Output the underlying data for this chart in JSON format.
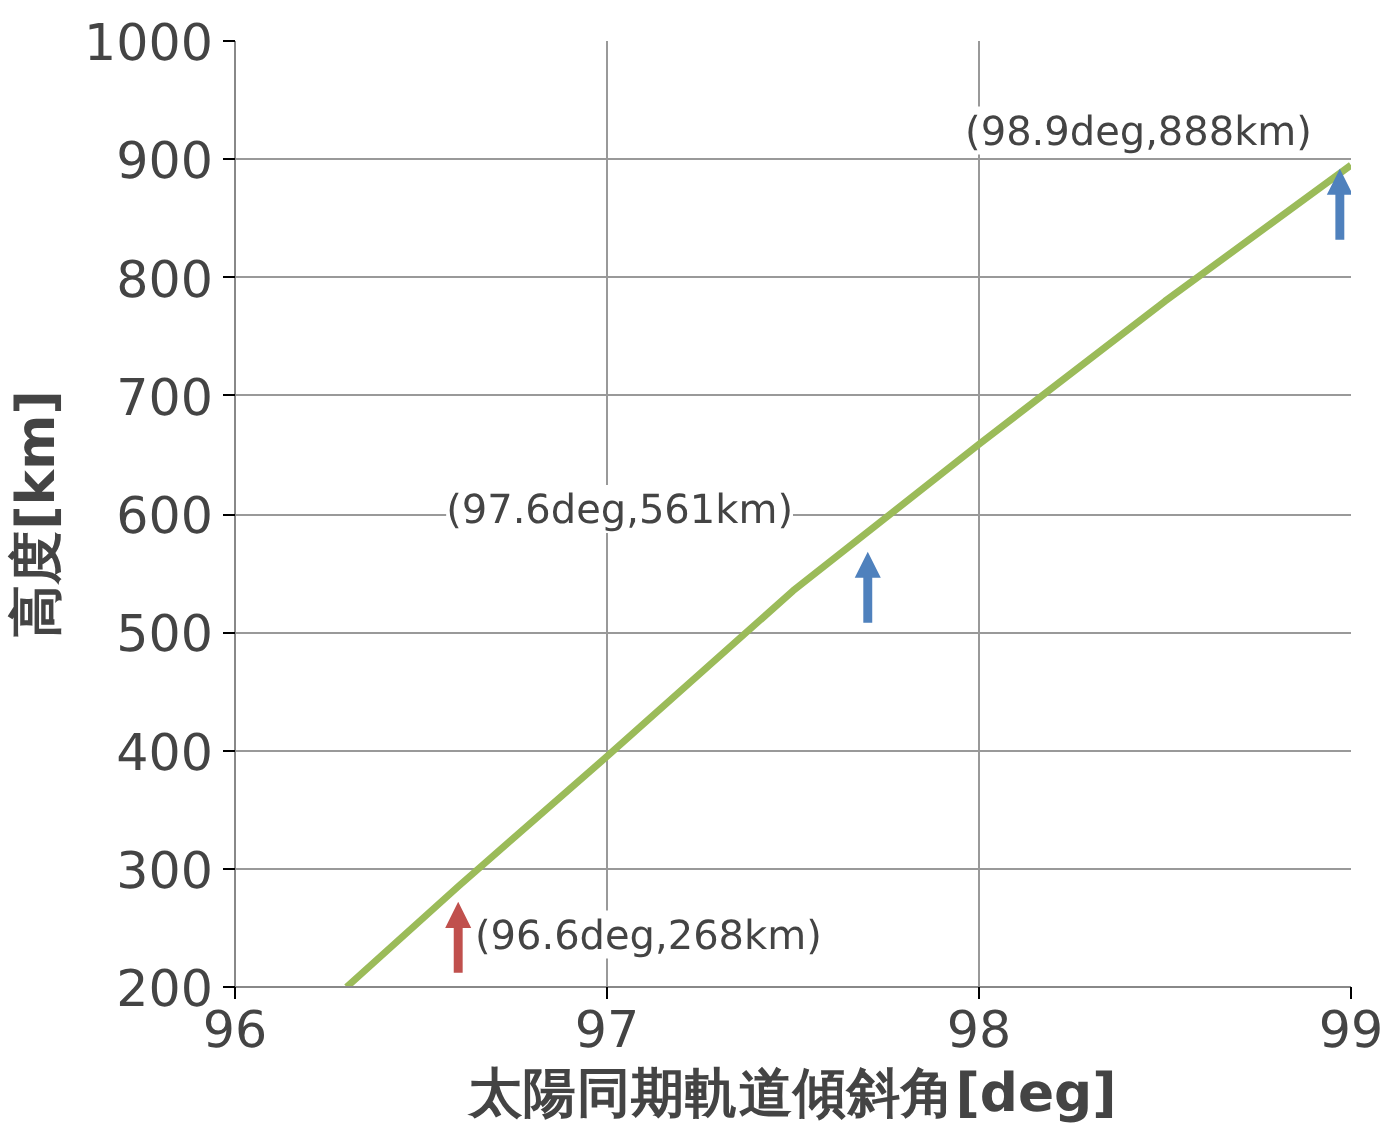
{
  "chart_data": {
    "type": "line",
    "xlabel": "太陽同期軌道傾斜角[deg]",
    "ylabel": "高度[km]",
    "x": [
      96.3,
      96.6,
      97.0,
      97.5,
      98.0,
      98.5,
      99.0
    ],
    "series": [
      {
        "color": "#9bbb59",
        "values": [
          200,
          285,
          395,
          535,
          659,
          780,
          895
        ]
      }
    ],
    "xlim": [
      96,
      99
    ],
    "xticks": [
      96,
      97,
      98,
      99
    ],
    "ylim": [
      200,
      1000
    ],
    "yticks": [
      200,
      300,
      400,
      500,
      600,
      700,
      800,
      900,
      1000
    ],
    "grid": true,
    "marker": "none",
    "line_style": "solid",
    "annotations": [
      "(96.6deg,268km)",
      "(97.6deg,561km)",
      "(98.9deg,888km)"
    ]
  }
}
